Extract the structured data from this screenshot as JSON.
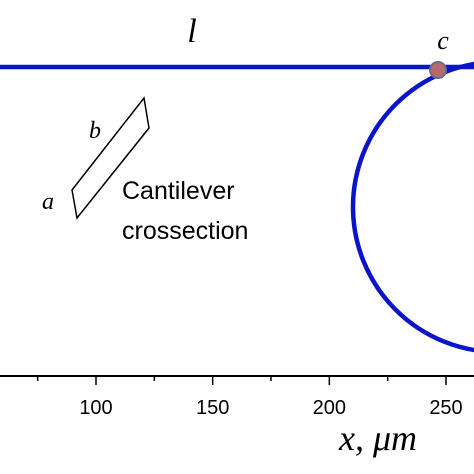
{
  "figure": {
    "line_label": "l",
    "point_label": "c",
    "cross_section": {
      "label_a": "a",
      "label_b": "b",
      "caption_line1": "Cantilever",
      "caption_line2": "crossection"
    },
    "colors": {
      "beam": "#0a14c8",
      "circle": "#0a14c8",
      "contact_point_fill": "#b86a6a",
      "contact_point_stroke": "#6b6b8a",
      "ink": "#000000"
    }
  },
  "chart_data": {
    "type": "diagram",
    "xlabel": "x, μm",
    "x_ticks": [
      100,
      150,
      200,
      250
    ],
    "circle": {
      "center_x": 300
    },
    "contact_point": {
      "x": 245
    }
  }
}
